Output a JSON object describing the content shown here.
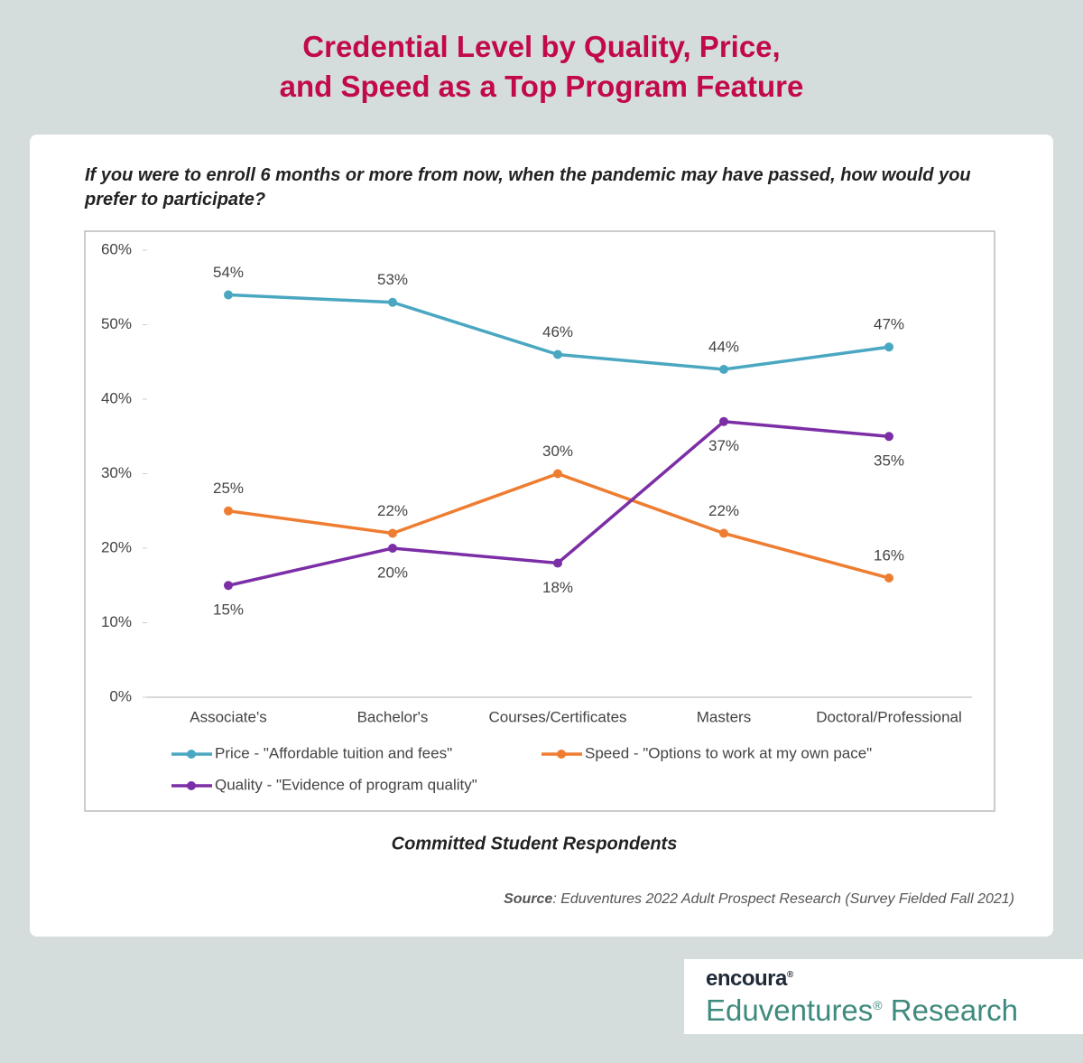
{
  "header": {
    "title": "Credential Level by Quality, Price, and Speed as a Top Program Feature"
  },
  "chart_data": {
    "type": "line",
    "title": "If you were to enroll 6 months or more from now, when the pandemic may have passed, how would you prefer to participate?",
    "categories": [
      "Associate's",
      "Bachelor's",
      "Courses/Certificates",
      "Masters",
      "Doctoral/Professional"
    ],
    "series": [
      {
        "name": "Price - \"Affordable tuition and fees\"",
        "color": "#4aa7c1",
        "values": [
          54,
          53,
          46,
          44,
          47
        ],
        "value_labels": [
          "54%",
          "53%",
          "46%",
          "44%",
          "47%"
        ]
      },
      {
        "name": "Speed - \"Options to work at my own pace\"",
        "color": "#ee7d31",
        "values": [
          25,
          22,
          30,
          22,
          16
        ],
        "value_labels": [
          "25%",
          "22%",
          "30%",
          "22%",
          "16%"
        ]
      },
      {
        "name": "Quality - \"Evidence of program quality\"",
        "color": "#7b2ea6",
        "values": [
          15,
          20,
          18,
          37,
          35
        ],
        "value_labels": [
          "15%",
          "20%",
          "18%",
          "37%",
          "35%"
        ]
      }
    ],
    "ylim": [
      0,
      60
    ],
    "yticks": [
      {
        "value": 0,
        "label": "0%"
      },
      {
        "value": 10,
        "label": "10%"
      },
      {
        "value": 20,
        "label": "20%"
      },
      {
        "value": 30,
        "label": "30%"
      },
      {
        "value": 40,
        "label": "40%"
      },
      {
        "value": 50,
        "label": "50%"
      },
      {
        "value": 60,
        "label": "60%"
      }
    ],
    "grid": false,
    "legend": "bottom",
    "caption": "Committed Student Respondents"
  },
  "source": {
    "label": "Source",
    "text": ": Eduventures 2022 Adult Prospect Research (Survey Fielded Fall 2021)"
  },
  "logo": {
    "brand": "encoura",
    "brand_mark": "®",
    "name": "Eduventures",
    "name_mark": "®",
    "suffix": "Research"
  }
}
